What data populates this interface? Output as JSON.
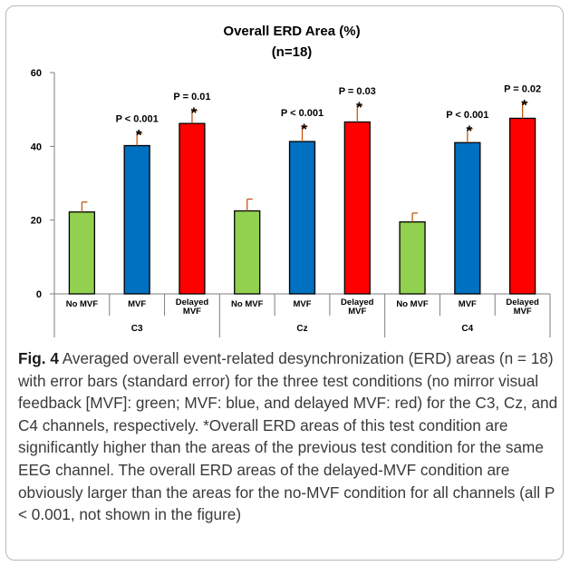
{
  "chart_data": {
    "type": "bar",
    "title": "Overall ERD Area (%)",
    "subtitle": "(n=18)",
    "ylim": [
      0,
      60
    ],
    "yticks": [
      "0",
      "20",
      "40",
      "60"
    ],
    "grid": false,
    "groups": [
      "C3",
      "Cz",
      "C4"
    ],
    "bar_labels": [
      "No MVF",
      "MVF",
      "Delayed MVF"
    ],
    "colors": {
      "No MVF": "#92d050",
      "MVF": "#0070c0",
      "Delayed MVF": "#ff0000"
    },
    "error_bar_color": "#c55a11",
    "series": [
      {
        "name": "No MVF",
        "values": [
          22.2,
          22.5,
          19.5
        ],
        "errors": [
          2.7,
          3.2,
          2.4
        ]
      },
      {
        "name": "MVF",
        "values": [
          40.2,
          41.3,
          41.0
        ],
        "errors": [
          3.4,
          4.0,
          3.8
        ]
      },
      {
        "name": "Delayed MVF",
        "values": [
          46.2,
          46.6,
          47.6
        ],
        "errors": [
          3.5,
          4.5,
          4.2
        ]
      }
    ],
    "annotations": [
      {
        "group": "C3",
        "bar": "MVF",
        "text": "P < 0.001",
        "star": "*"
      },
      {
        "group": "C3",
        "bar": "Delayed MVF",
        "text": "P = 0.01",
        "star": "*"
      },
      {
        "group": "Cz",
        "bar": "MVF",
        "text": "P < 0.001",
        "star": "*"
      },
      {
        "group": "Cz",
        "bar": "Delayed MVF",
        "text": "P = 0.03",
        "star": "*"
      },
      {
        "group": "C4",
        "bar": "MVF",
        "text": "P < 0.001",
        "star": "*"
      },
      {
        "group": "C4",
        "bar": "Delayed MVF",
        "text": "P = 0.02",
        "star": "*"
      }
    ]
  },
  "caption": {
    "label": "Fig. 4",
    "text": "Averaged overall event-related desynchronization (ERD) areas (n = 18) with error bars (standard error) for the three test conditions (no mirror visual feedback [MVF]: green; MVF: blue, and delayed MVF: red) for the C3, Cz, and C4 channels, respectively. *Overall ERD areas of this test condition are significantly higher than the areas of the previous test condition for the same EEG channel. The overall ERD areas of the delayed-MVF condition are obviously larger than the areas for the no-MVF condition for all channels (all P < 0.001, not shown in the figure)"
  }
}
